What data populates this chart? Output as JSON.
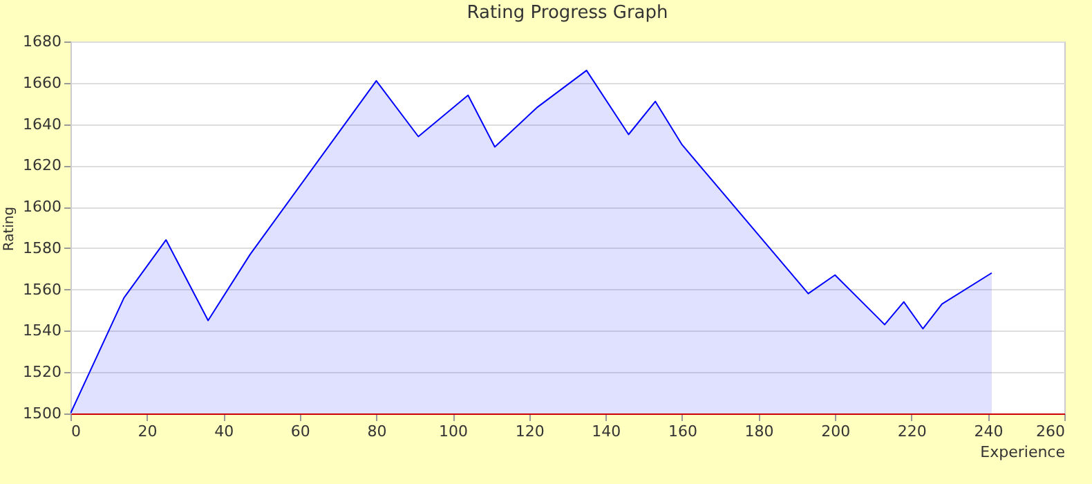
{
  "chart_data": {
    "type": "area",
    "title": "Rating Progress Graph",
    "xlabel": "Experience",
    "ylabel": "Rating",
    "x": [
      0,
      7,
      14,
      25,
      36,
      47,
      80,
      91,
      104,
      111,
      122,
      135,
      146,
      153,
      160,
      193,
      200,
      213,
      218,
      223,
      228,
      241
    ],
    "series": [
      {
        "color": "#0000ff",
        "values": [
          1500,
          1528,
          1556,
          1584,
          1545,
          1577,
          1661,
          1634,
          1654,
          1629,
          1648,
          1666,
          1635,
          1651,
          1630,
          1558,
          1567,
          1543,
          1554,
          1541,
          1553,
          1568
        ]
      }
    ],
    "xlim": [
      0,
      260
    ],
    "xticks": [
      0,
      20,
      40,
      60,
      80,
      100,
      120,
      140,
      160,
      180,
      200,
      220,
      240,
      260
    ],
    "ylim": [
      1500,
      1680
    ],
    "yticks": [
      1500,
      1520,
      1540,
      1560,
      1580,
      1600,
      1620,
      1640,
      1660,
      1680
    ],
    "grid": "y"
  }
}
